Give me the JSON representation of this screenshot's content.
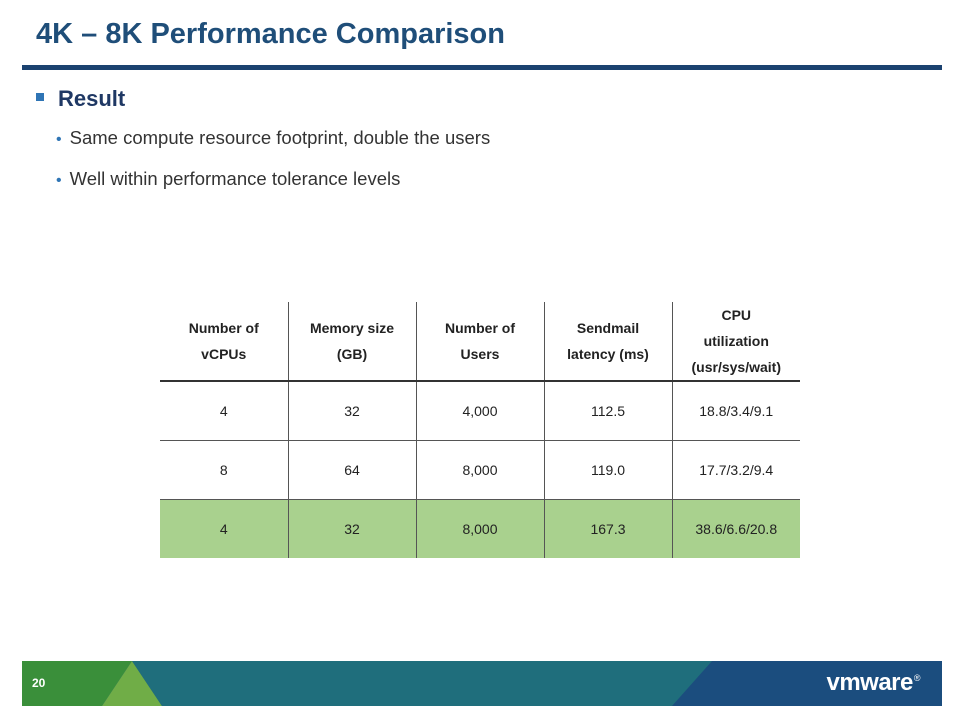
{
  "title": "4K – 8K Performance Comparison",
  "section": {
    "heading": "Result",
    "bullets": [
      "Same compute resource footprint, double the users",
      "Well within performance tolerance levels"
    ]
  },
  "table": {
    "headers": [
      [
        "Number of",
        "vCPUs"
      ],
      [
        "Memory size",
        "(GB)"
      ],
      [
        "Number of",
        "Users"
      ],
      [
        "Sendmail",
        "latency (ms)"
      ],
      [
        "CPU",
        "utilization",
        "(usr/sys/wait)"
      ]
    ],
    "rows": [
      [
        "4",
        "32",
        "4,000",
        "112.5",
        "18.8/3.4/9.1"
      ],
      [
        "8",
        "64",
        "8,000",
        "119.0",
        "17.7/3.2/9.4"
      ],
      [
        "4",
        "32",
        "8,000",
        "167.3",
        "38.6/6.6/20.8"
      ]
    ],
    "highlight_color": "#a9d18e"
  },
  "footer": {
    "page_number": "20",
    "logo_text": "vmware",
    "logo_mark": "®"
  },
  "colors": {
    "title": "#1f4e79",
    "rule": "#1b4270",
    "footer_green_dark": "#3a8f3a",
    "footer_green_light": "#70ad47",
    "footer_teal": "#1f6e7c",
    "footer_blue": "#1b4d7e"
  }
}
